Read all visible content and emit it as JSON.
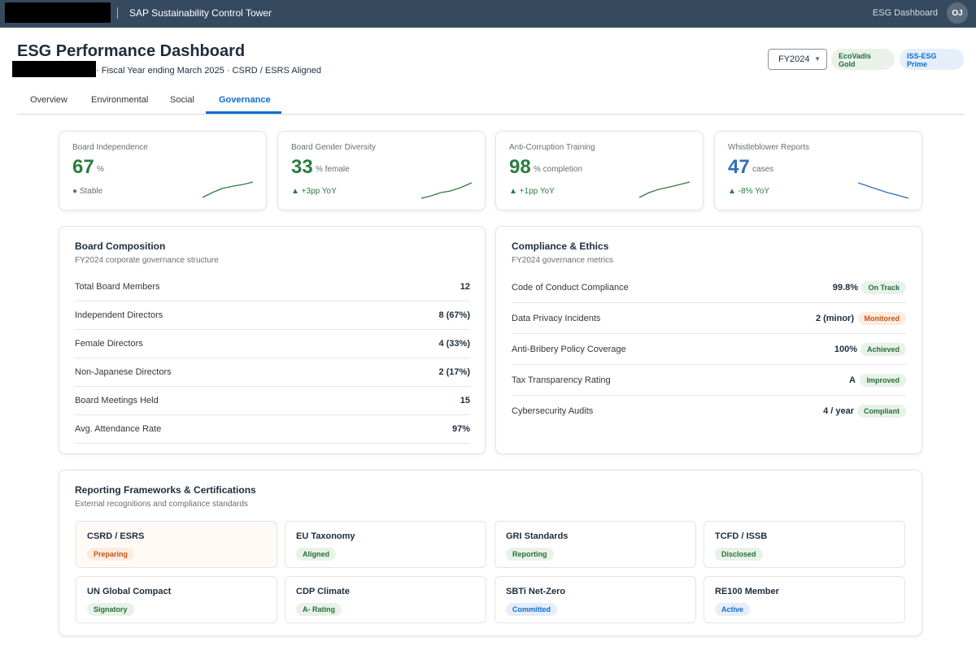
{
  "shell": {
    "app_title": "SAP Sustainability Control Tower",
    "nav_link": "ESG Dashboard",
    "avatar_initials": "OJ"
  },
  "header": {
    "title": "ESG Performance Dashboard",
    "subtitle": "· Fiscal Year ending March 2025 · CSRD / ESRS Aligned",
    "year_selected": "FY2024",
    "ratings": [
      {
        "label": "EcoVadis Gold",
        "color": "#256f3a"
      },
      {
        "label": "ISS-ESG Prime",
        "color": "#0a6ed1"
      }
    ]
  },
  "tabs": [
    {
      "label": "Overview",
      "active": false
    },
    {
      "label": "Environmental",
      "active": false
    },
    {
      "label": "Social",
      "active": false
    },
    {
      "label": "Governance",
      "active": true
    }
  ],
  "kpis": [
    {
      "label": "Board Independence",
      "value": "67",
      "unit": "%",
      "trend": "● Stable",
      "color": "#2b7d3f",
      "trend_color": "#6a6d70"
    },
    {
      "label": "Board Gender Diversity",
      "value": "33",
      "unit": "% female",
      "trend": "▲ +3pp YoY",
      "color": "#2b7d3f",
      "trend_color": "#2b7d3f"
    },
    {
      "label": "Anti-Corruption Training",
      "value": "98",
      "unit": "% completion",
      "trend": "▲ +1pp YoY",
      "color": "#2b7d3f",
      "trend_color": "#2b7d3f"
    },
    {
      "label": "Whistleblower Reports",
      "value": "47",
      "unit": "cases",
      "trend": "▲ -8% YoY",
      "color": "#2f6fb8",
      "trend_color": "#2b7d3f"
    }
  ],
  "board": {
    "title": "Board Composition",
    "subtitle": "FY2024 corporate governance structure",
    "rows": [
      {
        "label": "Total Board Members",
        "value": "12"
      },
      {
        "label": "Independent Directors",
        "value": "8 (67%)"
      },
      {
        "label": "Female Directors",
        "value": "4 (33%)"
      },
      {
        "label": "Non-Japanese Directors",
        "value": "2 (17%)"
      },
      {
        "label": "Board Meetings Held",
        "value": "15"
      },
      {
        "label": "Avg. Attendance Rate",
        "value": "97%"
      }
    ]
  },
  "compliance": {
    "title": "Compliance & Ethics",
    "subtitle": "FY2024 governance metrics",
    "rows": [
      {
        "label": "Code of Conduct Compliance",
        "value": "99.8%",
        "status": "On Track",
        "tone": "green"
      },
      {
        "label": "Data Privacy Incidents",
        "value": "2 (minor)",
        "status": "Monitored",
        "tone": "orange"
      },
      {
        "label": "Anti-Bribery Policy Coverage",
        "value": "100%",
        "status": "Achieved",
        "tone": "green"
      },
      {
        "label": "Tax Transparency Rating",
        "value": "A",
        "status": "Improved",
        "tone": "green"
      },
      {
        "label": "Cybersecurity Audits",
        "value": "4 / year",
        "status": "Compliant",
        "tone": "green"
      }
    ]
  },
  "frameworks": {
    "title": "Reporting Frameworks & Certifications",
    "subtitle": "External recognitions and compliance standards",
    "items": [
      {
        "name": "CSRD / ESRS",
        "status": "Preparing",
        "tone": "orange"
      },
      {
        "name": "EU Taxonomy",
        "status": "Aligned",
        "tone": "green"
      },
      {
        "name": "GRI Standards",
        "status": "Reporting",
        "tone": "green"
      },
      {
        "name": "TCFD / ISSB",
        "status": "Disclosed",
        "tone": "green"
      },
      {
        "name": "UN Global Compact",
        "status": "Signatory",
        "tone": "green"
      },
      {
        "name": "CDP Climate",
        "status": "A- Rating",
        "tone": "green"
      },
      {
        "name": "SBTi Net-Zero",
        "status": "Committed",
        "tone": "blue"
      },
      {
        "name": "RE100 Member",
        "status": "Active",
        "tone": "blue"
      }
    ]
  }
}
